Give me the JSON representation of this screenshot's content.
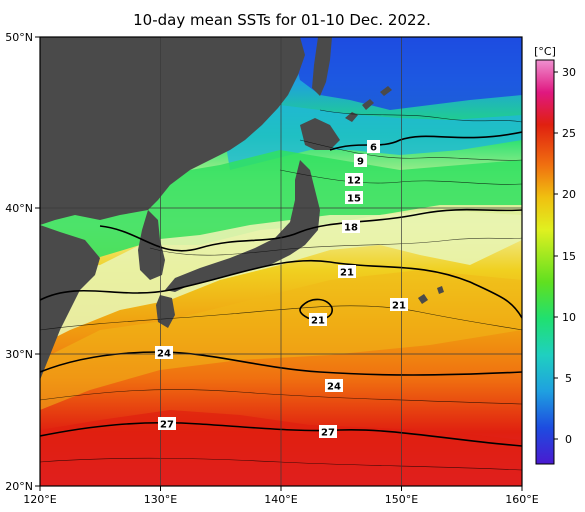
{
  "title": "10-day mean SSTs for 01-10 Dec. 2022.",
  "colors": {
    "land": "#4a4a4a",
    "frame": "#000000",
    "gridline": "#3a3a3a"
  },
  "axes": {
    "lon_labels": [
      "120°E",
      "130°E",
      "140°E",
      "150°E",
      "160°E"
    ],
    "lat_labels": [
      "50°N",
      "40°N",
      "30°N",
      "20°N"
    ]
  },
  "colorbar": {
    "unit": "[°C]",
    "ticks": [
      "30",
      "25",
      "20",
      "15",
      "10",
      "5",
      "0"
    ],
    "stops": [
      "#4a1ad0",
      "#1d4ce0",
      "#1fa0e0",
      "#1fd0c0",
      "#20e070",
      "#60e020",
      "#e0f020",
      "#f0c010",
      "#f07010",
      "#e02010",
      "#e01880",
      "#f090d0"
    ]
  },
  "contour_labels": [
    "6",
    "9",
    "12",
    "15",
    "18",
    "21",
    "21",
    "21",
    "24",
    "24",
    "27",
    "27"
  ]
}
